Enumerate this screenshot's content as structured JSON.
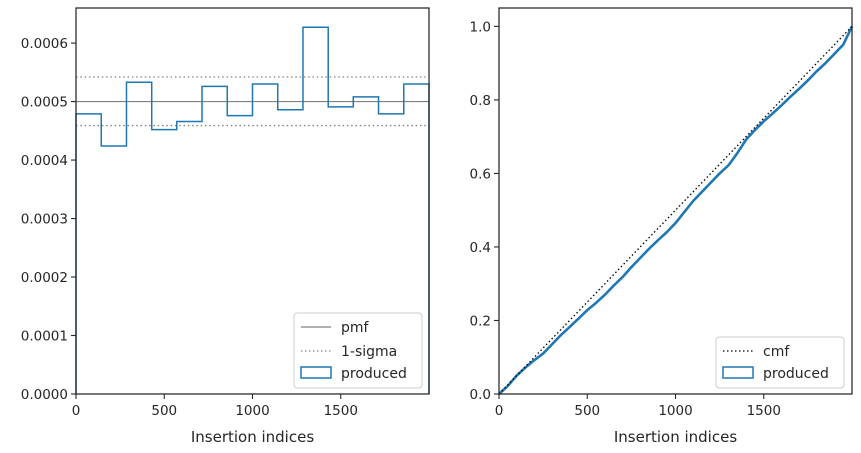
{
  "chart_data": [
    {
      "type": "step",
      "title": "",
      "xlabel": "Insertion indices",
      "ylabel": "",
      "xlim": [
        0,
        2000
      ],
      "ylim": [
        0,
        0.00066
      ],
      "xticks": [
        0,
        500,
        1000,
        1500
      ],
      "xtick_labels": [
        "0",
        "500",
        "1000",
        "1500"
      ],
      "yticks": [
        0,
        0.0001,
        0.0002,
        0.0003,
        0.0004,
        0.0005,
        0.0006
      ],
      "ytick_labels": [
        "0.0000",
        "0.0001",
        "0.0002",
        "0.0003",
        "0.0004",
        "0.0005",
        "0.0006"
      ],
      "grid": false,
      "legend_position": "lower-right",
      "legend": [
        "pmf",
        "1-sigma",
        "produced"
      ],
      "pmf": 0.0005,
      "sigma_band": [
        0.000459,
        0.000542
      ],
      "bin_edges": [
        0,
        143,
        286,
        429,
        571,
        714,
        857,
        1000,
        1143,
        1286,
        1429,
        1571,
        1714,
        1857,
        2000
      ],
      "series": [
        {
          "name": "produced",
          "values": [
            0.000479,
            0.000424,
            0.000533,
            0.000452,
            0.000466,
            0.000526,
            0.000476,
            0.00053,
            0.000486,
            0.000627,
            0.000491,
            0.000508,
            0.000479,
            0.00053
          ]
        }
      ],
      "colors": {
        "pmf": "#808080",
        "sigma": "#808080",
        "produced": "#1f77b4"
      }
    },
    {
      "type": "line",
      "title": "",
      "xlabel": "Insertion indices",
      "ylabel": "",
      "xlim": [
        0,
        2000
      ],
      "ylim": [
        0,
        1.05
      ],
      "xticks": [
        0,
        500,
        1000,
        1500
      ],
      "xtick_labels": [
        "0",
        "500",
        "1000",
        "1500"
      ],
      "yticks": [
        0,
        0.2,
        0.4,
        0.6,
        0.8,
        1.0
      ],
      "ytick_labels": [
        "0.0",
        "0.2",
        "0.4",
        "0.6",
        "0.8",
        "1.0"
      ],
      "grid": false,
      "legend_position": "lower-right",
      "legend": [
        "cmf",
        "produced"
      ],
      "series": [
        {
          "name": "cmf",
          "x": [
            0,
            2000
          ],
          "y": [
            0,
            1.0
          ]
        },
        {
          "name": "produced",
          "x": [
            0,
            50,
            100,
            150,
            200,
            250,
            300,
            350,
            400,
            450,
            500,
            550,
            600,
            650,
            700,
            750,
            800,
            850,
            900,
            950,
            1000,
            1050,
            1100,
            1150,
            1200,
            1250,
            1300,
            1350,
            1400,
            1450,
            1500,
            1550,
            1600,
            1650,
            1700,
            1750,
            1800,
            1850,
            1900,
            1950,
            2000
          ],
          "y": [
            0,
            0.022,
            0.05,
            0.072,
            0.092,
            0.11,
            0.135,
            0.16,
            0.182,
            0.205,
            0.228,
            0.248,
            0.27,
            0.295,
            0.318,
            0.345,
            0.37,
            0.395,
            0.418,
            0.44,
            0.465,
            0.495,
            0.525,
            0.55,
            0.575,
            0.6,
            0.622,
            0.655,
            0.692,
            0.718,
            0.742,
            0.763,
            0.785,
            0.808,
            0.83,
            0.853,
            0.878,
            0.9,
            0.925,
            0.95,
            1.0
          ]
        }
      ],
      "colors": {
        "cmf": "#000000",
        "produced": "#1f77b4"
      }
    }
  ]
}
